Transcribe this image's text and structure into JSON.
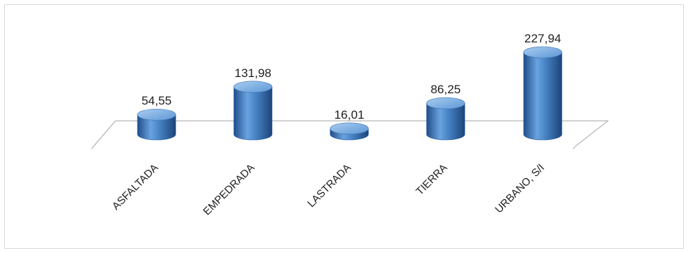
{
  "chart_data": {
    "type": "bar",
    "style": "3d-cylinder",
    "categories": [
      "ASFALTADA",
      "EMPEDRADA",
      "LASTRADA",
      "TIERRA",
      "URBANO, S/I"
    ],
    "values": [
      54.55,
      131.98,
      16.01,
      86.25,
      227.94
    ],
    "data_labels": [
      "54,55",
      "131,98",
      "16,01",
      "86,25",
      "227,94"
    ],
    "title": "",
    "xlabel": "",
    "ylabel": "",
    "ylim": [
      0,
      240
    ],
    "grid": false,
    "legend": "none",
    "colors": {
      "bar": "#4a86c8",
      "bar_dark": "#1f4e8a",
      "bar_light": "#8fbbe8",
      "floor_line": "#a6a6a6"
    }
  }
}
